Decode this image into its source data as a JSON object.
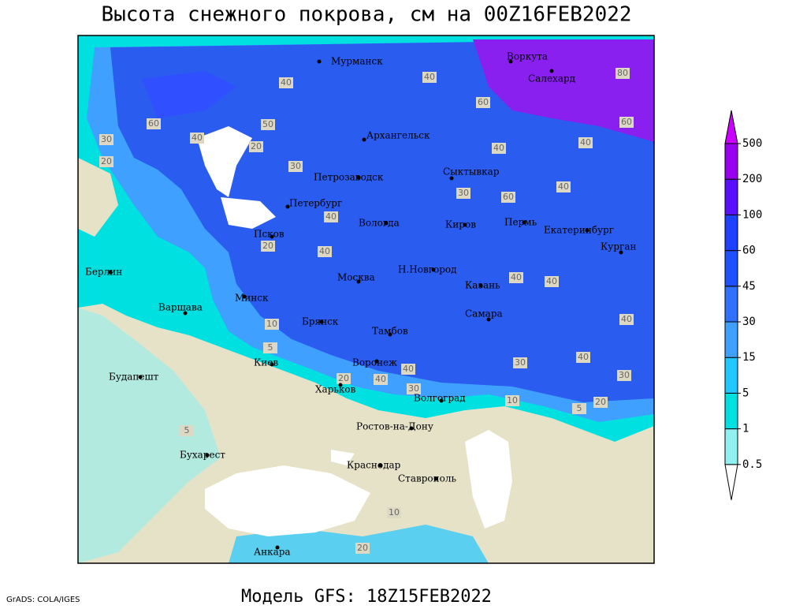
{
  "title": "Высота снежного покрова, см на 00Z16FEB2022",
  "footer": "Модель GFS: 18Z15FEB2022",
  "credit": "GrADS: COLA/IGES",
  "legend": {
    "levels": [
      0.5,
      1,
      5,
      15,
      30,
      45,
      60,
      100,
      200,
      500
    ],
    "colors": [
      "#ffffff",
      "#90f0f0",
      "#00e0e0",
      "#20c8ff",
      "#40a0ff",
      "#3070ff",
      "#1e50ff",
      "#1e40ff",
      "#5a10ff",
      "#9a00f0",
      "#cc00ff"
    ]
  },
  "cities": [
    "Мурманск",
    "Воркута",
    "Салехард",
    "Архангельск",
    "Сыктывкар",
    "Петрозаводск",
    "Петербург",
    "Вологда",
    "Киров",
    "Пермь",
    "Екатеринбург",
    "Псков",
    "Курган",
    "Берлин",
    "Н.Новгород",
    "Москва",
    "Казань",
    "Минск",
    "Варшава",
    "Самара",
    "Брянск",
    "Тамбов",
    "Воронеж",
    "Киев",
    "Харьков",
    "Будапешт",
    "Волгоград",
    "Ростов-на-Дону",
    "Бухарест",
    "Краснодар",
    "Ставрополь",
    "Анкара"
  ],
  "contour_labels": [
    60,
    40,
    30,
    20,
    50,
    20,
    40,
    60,
    80,
    60,
    40,
    40,
    40,
    60,
    30,
    40,
    20,
    40,
    40,
    40,
    10,
    5,
    40,
    40,
    30,
    30,
    40,
    40,
    30,
    20,
    10,
    5,
    20,
    5,
    10,
    20,
    30,
    40
  ]
}
